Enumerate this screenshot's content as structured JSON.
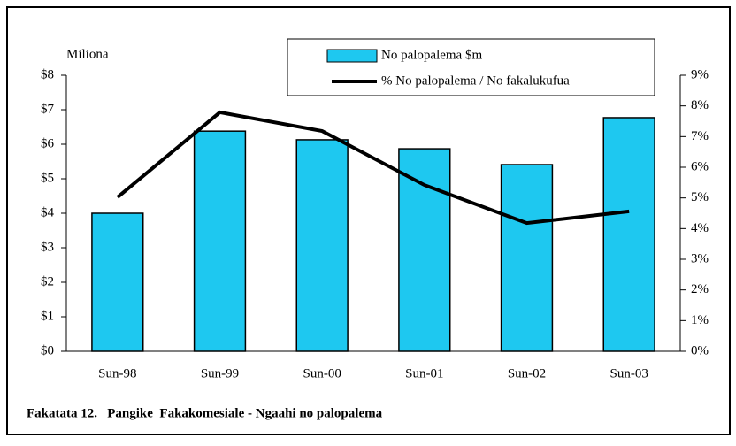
{
  "chart_data": {
    "type": "bar-line",
    "title": "Fakatata 12.   Pangike  Fakakomesiale - Ngaahi no palopalema",
    "y_label": "Miliona",
    "categories": [
      "Sun-98",
      "Sun-99",
      "Sun-00",
      "Sun-01",
      "Sun-02",
      "Sun-03"
    ],
    "series": [
      {
        "name": "No palopalema $m",
        "type": "bar",
        "color": "#1ec8f0",
        "values": [
          4.0,
          6.38,
          6.13,
          5.87,
          5.41,
          6.77
        ]
      },
      {
        "name": "% No palopalema / No fakalukufua",
        "type": "line",
        "axis": "y2",
        "color": "#000000",
        "values": [
          5.02,
          7.79,
          7.18,
          5.42,
          4.18,
          4.56
        ]
      }
    ],
    "ylim": [
      0,
      8
    ],
    "yticks": [
      {
        "value": 0,
        "label": "$0"
      },
      {
        "value": 1,
        "label": "$1"
      },
      {
        "value": 2,
        "label": "$2"
      },
      {
        "value": 3,
        "label": "$3"
      },
      {
        "value": 4,
        "label": "$4"
      },
      {
        "value": 5,
        "label": "$5"
      },
      {
        "value": 6,
        "label": "$6"
      },
      {
        "value": 7,
        "label": "$7"
      },
      {
        "value": 8,
        "label": "$8"
      }
    ],
    "y2lim": [
      0,
      9
    ],
    "y2ticks": [
      {
        "value": 0,
        "label": "0%"
      },
      {
        "value": 1,
        "label": "1%"
      },
      {
        "value": 2,
        "label": "2%"
      },
      {
        "value": 3,
        "label": "3%"
      },
      {
        "value": 4,
        "label": "4%"
      },
      {
        "value": 5,
        "label": "5%"
      },
      {
        "value": 6,
        "label": "6%"
      },
      {
        "value": 7,
        "label": "7%"
      },
      {
        "value": 8,
        "label": "8%"
      },
      {
        "value": 9,
        "label": "9%"
      }
    ],
    "grid": false,
    "legend": "top"
  }
}
